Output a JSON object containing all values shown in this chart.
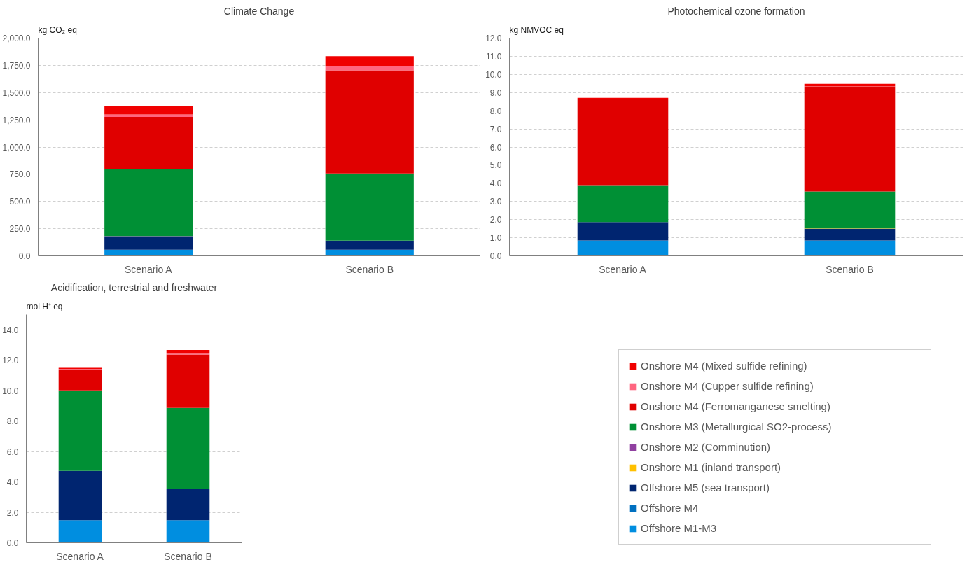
{
  "chart_data": [
    {
      "type": "bar",
      "stacked": true,
      "title": "Climate Change",
      "ylabel": "kg CO₂ eq",
      "categories": [
        "Scenario A",
        "Scenario B"
      ],
      "grid": "y",
      "ylim": [
        0,
        2000
      ],
      "yticks": [
        {
          "value": 0,
          "label": "0.0"
        },
        {
          "value": 250,
          "label": "250.0"
        },
        {
          "value": 500,
          "label": "500.0"
        },
        {
          "value": 750,
          "label": "750.0"
        },
        {
          "value": 1000,
          "label": "1,000.0"
        },
        {
          "value": 1250,
          "label": "1,250.0"
        },
        {
          "value": 1500,
          "label": "1,500.0"
        },
        {
          "value": 1750,
          "label": "1,750.0"
        },
        {
          "value": 2000,
          "label": "2,000.0"
        }
      ],
      "series": [
        {
          "color": "#008ee0",
          "values": [
            57,
            57
          ]
        },
        {
          "color": "#0070c0",
          "values": [
            0,
            0
          ]
        },
        {
          "color": "#002570",
          "values": [
            123,
            77
          ]
        },
        {
          "color": "#ffc000",
          "values": [
            0,
            0
          ]
        },
        {
          "color": "#9040a0",
          "values": [
            2,
            6
          ]
        },
        {
          "color": "#009035",
          "values": [
            615,
            617
          ]
        },
        {
          "color": "#e00000",
          "values": [
            479,
            947
          ]
        },
        {
          "color": "#ff6680",
          "values": [
            23,
            39
          ]
        },
        {
          "color": "#f00000",
          "values": [
            75,
            92
          ]
        }
      ]
    },
    {
      "type": "bar",
      "stacked": true,
      "title": "Photochemical ozone formation",
      "ylabel": "kg NMVOC eq",
      "categories": [
        "Scenario A",
        "Scenario B"
      ],
      "grid": "y",
      "ylim": [
        0,
        12
      ],
      "yticks": [
        {
          "value": 0,
          "label": "0.0"
        },
        {
          "value": 1,
          "label": "1.0"
        },
        {
          "value": 2,
          "label": "2.0"
        },
        {
          "value": 3,
          "label": "3.0"
        },
        {
          "value": 4,
          "label": "4.0"
        },
        {
          "value": 5,
          "label": "5.0"
        },
        {
          "value": 6,
          "label": "6.0"
        },
        {
          "value": 7,
          "label": "7.0"
        },
        {
          "value": 8,
          "label": "8.0"
        },
        {
          "value": 9,
          "label": "9.0"
        },
        {
          "value": 10,
          "label": "10.0"
        },
        {
          "value": 11,
          "label": "11.0"
        },
        {
          "value": 12,
          "label": "12.0"
        }
      ],
      "series": [
        {
          "color": "#008ee0",
          "values": [
            0.85,
            0.85
          ]
        },
        {
          "color": "#0070c0",
          "values": [
            0,
            0
          ]
        },
        {
          "color": "#002570",
          "values": [
            1.01,
            0.65
          ]
        },
        {
          "color": "#ffc000",
          "values": [
            0,
            0.01
          ]
        },
        {
          "color": "#9040a0",
          "values": [
            0,
            0
          ]
        },
        {
          "color": "#009035",
          "values": [
            2.04,
            2.04
          ]
        },
        {
          "color": "#e00000",
          "values": [
            4.73,
            5.76
          ]
        },
        {
          "color": "#ff6680",
          "values": [
            0.03,
            0.03
          ]
        },
        {
          "color": "#f00000",
          "values": [
            0.05,
            0.14
          ]
        }
      ]
    },
    {
      "type": "bar",
      "stacked": true,
      "title": "Acidification, terrestrial and freshwater",
      "ylabel": "mol H⁺ eq",
      "categories": [
        "Scenario A",
        "Scenario B"
      ],
      "grid": "y",
      "legend": "right",
      "ylim": [
        0,
        15
      ],
      "yticks": [
        {
          "value": 0,
          "label": "0.0"
        },
        {
          "value": 2,
          "label": "2.0"
        },
        {
          "value": 4,
          "label": "4.0"
        },
        {
          "value": 6,
          "label": "6.0"
        },
        {
          "value": 8,
          "label": "8.0"
        },
        {
          "value": 10,
          "label": "10.0"
        },
        {
          "value": 12,
          "label": "12.0"
        },
        {
          "value": 14,
          "label": "14.0"
        }
      ],
      "series": [
        {
          "name": "Offshore M1-M3",
          "color": "#008ee0",
          "values": [
            1.48,
            1.48
          ]
        },
        {
          "name": "Offshore M4",
          "color": "#0070c0",
          "values": [
            0,
            0
          ]
        },
        {
          "name": "Offshore M5 (sea transport)",
          "color": "#002570",
          "values": [
            3.25,
            2.07
          ]
        },
        {
          "name": "Onshore M1 (inland transport)",
          "color": "#ffc000",
          "values": [
            0,
            0
          ]
        },
        {
          "name": "Onshore M2 (Comminution)",
          "color": "#9040a0",
          "values": [
            0,
            0
          ]
        },
        {
          "name": "Onshore M3 (Metallurgical SO2-process)",
          "color": "#009035",
          "values": [
            5.29,
            5.32
          ]
        },
        {
          "name": "Onshore M4 (Ferromanganese smelting)",
          "color": "#e00000",
          "values": [
            1.35,
            3.51
          ]
        },
        {
          "name": "Onshore M4 (Cupper sulfide refining)",
          "color": "#ff6680",
          "values": [
            0.05,
            0.05
          ]
        },
        {
          "name": "Onshore M4 (Mixed sulfide refining)",
          "color": "#f00000",
          "values": [
            0.08,
            0.25
          ]
        }
      ]
    }
  ]
}
